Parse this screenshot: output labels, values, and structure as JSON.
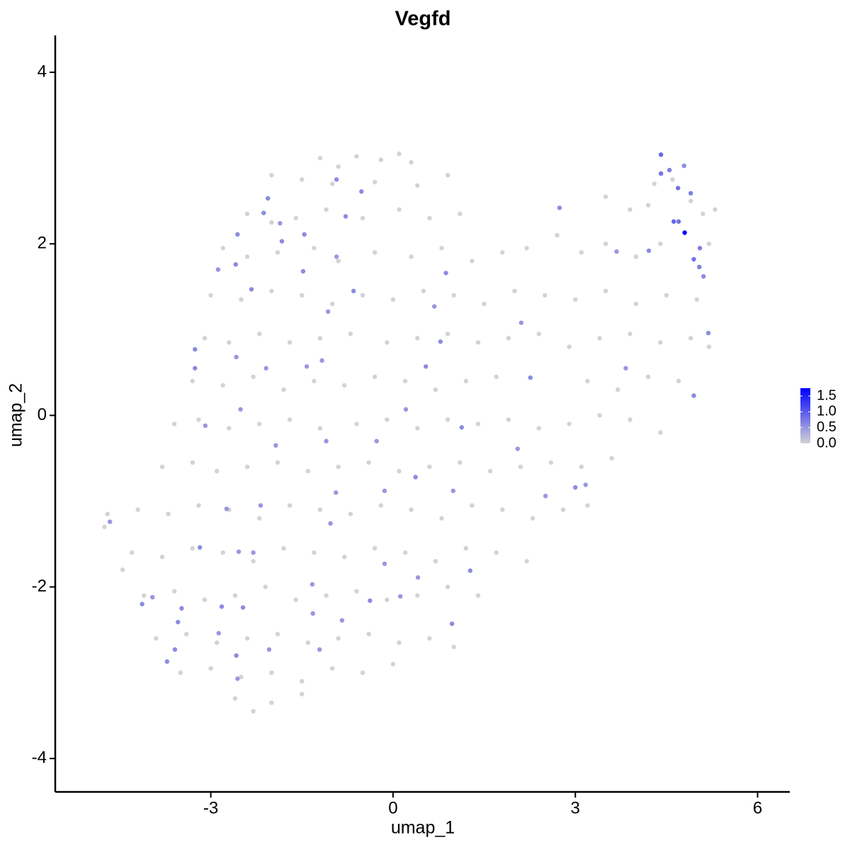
{
  "chart_data": {
    "type": "scatter",
    "title": "Vegfd",
    "x_label": "umap_1",
    "y_label": "umap_2",
    "xlim": [
      -5.56,
      6.53
    ],
    "ylim": [
      -4.39,
      4.43
    ],
    "xticks": [
      -3,
      0,
      3,
      6
    ],
    "yticks": [
      -4,
      -2,
      0,
      2,
      4
    ],
    "colorbar": {
      "colors": [
        "#d3d3d3",
        "#0000ff"
      ],
      "lim": [
        0,
        1.75
      ],
      "ticks": [
        {
          "value": 0,
          "label": "0.0"
        },
        {
          "value": 0.5,
          "label": "0.5"
        },
        {
          "value": 1,
          "label": "1.0"
        },
        {
          "value": 1.5,
          "label": "1.5"
        }
      ]
    },
    "x": [
      -1.2,
      -0.6,
      -0.2,
      0.1,
      0.3,
      -0.9,
      -2.0,
      -1.5,
      -1.0,
      -0.3,
      0.4,
      0.9,
      4.3,
      4.6,
      4.9,
      -2.4,
      -2.0,
      -1.6,
      -1.1,
      -0.5,
      0.1,
      0.6,
      1.1,
      3.5,
      3.9,
      4.2,
      5.1,
      5.3,
      -2.8,
      -2.4,
      -1.9,
      -1.3,
      -0.9,
      -0.3,
      0.3,
      0.8,
      1.3,
      1.8,
      2.2,
      2.7,
      3.1,
      3.5,
      4.0,
      4.4,
      5.2,
      -3.0,
      -2.5,
      -2.0,
      -1.5,
      -1.0,
      -0.5,
      0.0,
      0.5,
      1.0,
      1.5,
      2.0,
      2.5,
      3.0,
      3.5,
      4.0,
      4.5,
      5.0,
      -3.1,
      -2.7,
      -2.2,
      -1.7,
      -1.2,
      -0.7,
      -0.1,
      0.4,
      0.9,
      1.4,
      1.9,
      2.4,
      2.9,
      3.4,
      3.9,
      4.4,
      4.9,
      5.2,
      -3.3,
      -2.8,
      -2.3,
      -1.8,
      -1.3,
      -0.8,
      -0.3,
      0.2,
      0.7,
      1.2,
      1.7,
      3.2,
      3.7,
      4.2,
      4.7,
      -3.6,
      -3.2,
      -2.7,
      -2.2,
      -1.7,
      -1.2,
      -0.6,
      -0.1,
      0.4,
      0.9,
      1.4,
      1.9,
      2.4,
      2.9,
      3.4,
      3.9,
      4.4,
      -3.8,
      -3.3,
      -2.9,
      -2.4,
      -1.9,
      -1.4,
      -0.9,
      -0.4,
      0.1,
      0.6,
      1.1,
      1.6,
      2.1,
      2.6,
      3.1,
      3.6,
      -4.2,
      -3.7,
      -3.2,
      -2.7,
      -2.2,
      -1.7,
      -1.2,
      -0.7,
      -0.2,
      0.3,
      0.8,
      1.3,
      1.8,
      2.3,
      2.8,
      3.2,
      -4.3,
      -3.8,
      -3.3,
      -2.8,
      -2.3,
      -1.8,
      -1.3,
      -0.8,
      -0.3,
      0.2,
      0.7,
      1.2,
      1.7,
      2.2,
      -4.1,
      -3.6,
      -3.1,
      -2.6,
      -2.1,
      -1.6,
      -1.1,
      -0.6,
      -0.1,
      0.4,
      0.9,
      1.4,
      -3.9,
      -3.4,
      -2.9,
      -2.4,
      -1.9,
      -1.4,
      -0.9,
      -0.4,
      0.1,
      0.6,
      1.0,
      -3.5,
      -3.0,
      -2.5,
      -2.0,
      -1.5,
      -1.0,
      -0.5,
      0.0,
      -2.6,
      -2.3,
      -2.0,
      -1.5,
      -4.75,
      -4.7,
      -4.45,
      4.8,
      4.41,
      4.41,
      4.55,
      4.79,
      4.69,
      4.9,
      4.62,
      4.7,
      4.95,
      5.05,
      5.04,
      5.11,
      5.19,
      4.95,
      4.21,
      3.68,
      2.74,
      3.83,
      2.26,
      2.11,
      2.05,
      2.51,
      3.0,
      3.17,
      1.27,
      0.97,
      0.99,
      1.13,
      0.37,
      0.21,
      0.54,
      0.87,
      0.68,
      0.78,
      -0.52,
      -0.93,
      -0.78,
      -0.65,
      -0.93,
      -1.07,
      -1.46,
      -1.48,
      -1.83,
      -1.86,
      -2.06,
      -2.13,
      -2.33,
      -2.59,
      -2.88,
      -2.56,
      -3.26,
      -3.26,
      -2.58,
      -2.09,
      -1.42,
      -1.17,
      -1.93,
      -3.09,
      -2.51,
      -1.1,
      -0.27,
      -0.14,
      -0.94,
      -1.03,
      -2.18,
      -2.74,
      -3.18,
      -2.54,
      -2.3,
      -0.14,
      0.41,
      -0.38,
      -1.33,
      -1.32,
      -0.84,
      -2.82,
      -2.47,
      -3.48,
      -3.54,
      -3.96,
      -4.13,
      -3.59,
      -3.72,
      -2.58,
      -2.87,
      -2.04,
      -1.21,
      -2.56,
      -4.66,
      0.12
    ],
    "values": [
      3.0,
      3.02,
      2.98,
      3.05,
      2.95,
      2.9,
      2.8,
      2.75,
      2.7,
      2.72,
      2.68,
      2.8,
      2.7,
      2.75,
      2.5,
      2.35,
      2.25,
      2.3,
      2.4,
      2.3,
      2.4,
      2.3,
      2.35,
      2.55,
      2.4,
      2.45,
      2.35,
      2.4,
      1.95,
      1.85,
      1.9,
      1.95,
      1.8,
      1.9,
      1.85,
      1.95,
      1.8,
      1.9,
      1.95,
      2.1,
      1.9,
      2.0,
      1.85,
      2.0,
      2.0,
      1.4,
      1.35,
      1.45,
      1.4,
      1.3,
      1.4,
      1.35,
      1.45,
      1.4,
      1.3,
      1.45,
      1.4,
      1.35,
      1.45,
      1.3,
      1.4,
      1.35,
      0.9,
      0.85,
      0.95,
      0.85,
      0.9,
      0.95,
      0.85,
      0.9,
      0.95,
      0.85,
      0.9,
      0.95,
      0.8,
      0.9,
      0.95,
      0.85,
      0.9,
      0.8,
      0.4,
      0.35,
      0.45,
      0.3,
      0.4,
      0.35,
      0.45,
      0.4,
      0.3,
      0.4,
      0.45,
      0.4,
      0.3,
      0.45,
      0.4,
      -0.1,
      -0.05,
      -0.15,
      -0.1,
      -0.05,
      -0.15,
      -0.1,
      -0.05,
      -0.15,
      -0.05,
      -0.1,
      -0.05,
      -0.15,
      -0.1,
      0.0,
      -0.05,
      -0.2,
      -0.6,
      -0.55,
      -0.65,
      -0.6,
      -0.55,
      -0.65,
      -0.6,
      -0.55,
      -0.65,
      -0.6,
      -0.55,
      -0.65,
      -0.6,
      -0.55,
      -0.6,
      -0.5,
      -1.1,
      -1.15,
      -1.05,
      -1.1,
      -1.2,
      -1.05,
      -1.1,
      -1.15,
      -1.05,
      -1.1,
      -1.2,
      -1.05,
      -1.1,
      -1.2,
      -1.1,
      -1.05,
      -1.6,
      -1.65,
      -1.55,
      -1.6,
      -1.7,
      -1.55,
      -1.6,
      -1.65,
      -1.55,
      -1.6,
      -1.7,
      -1.55,
      -1.6,
      -1.7,
      -2.1,
      -2.05,
      -2.15,
      -2.1,
      -2.0,
      -2.15,
      -2.1,
      -2.05,
      -2.15,
      -2.1,
      -2.0,
      -2.1,
      -2.6,
      -2.55,
      -2.65,
      -2.6,
      -2.55,
      -2.65,
      -2.6,
      -2.55,
      -2.65,
      -2.6,
      -2.7,
      -3.0,
      -2.95,
      -3.05,
      -3.0,
      -3.1,
      -2.95,
      -3.0,
      -2.9,
      -3.3,
      -3.45,
      -3.35,
      -3.25,
      -1.3,
      -1.15,
      -1.8,
      2.13,
      3.04,
      2.82,
      2.86,
      2.91,
      2.65,
      2.59,
      2.26,
      2.26,
      1.82,
      1.95,
      1.73,
      1.62,
      0.96,
      0.23,
      1.92,
      1.91,
      2.42,
      0.55,
      0.44,
      1.08,
      -0.39,
      -0.94,
      -0.84,
      -0.81,
      -1.81,
      -2.43,
      -0.88,
      -0.14,
      -0.72,
      0.07,
      0.57,
      1.66,
      1.27,
      0.86,
      2.61,
      2.75,
      2.32,
      1.45,
      1.85,
      1.21,
      2.11,
      1.68,
      2.03,
      2.24,
      2.53,
      2.36,
      1.47,
      1.76,
      1.7,
      2.11,
      0.77,
      0.55,
      0.68,
      0.55,
      0.57,
      0.64,
      -0.35,
      -0.12,
      0.07,
      -0.3,
      -0.3,
      -0.88,
      -0.9,
      -1.26,
      -1.05,
      -1.09,
      -1.54,
      -1.59,
      -1.6,
      -1.73,
      -1.89,
      -2.16,
      -1.97,
      -2.31,
      -2.39,
      -2.23,
      -2.24,
      -2.25,
      -2.41,
      -2.12,
      -2.2,
      -2.73,
      -2.87,
      -2.8,
      -2.54,
      -2.73,
      -2.73,
      -3.07,
      -1.24,
      -2.11
    ],
    "expression": [
      0,
      0,
      0,
      0,
      0,
      0,
      0,
      0,
      0,
      0,
      0,
      0,
      0,
      0,
      0,
      0,
      0,
      0,
      0,
      0,
      0,
      0,
      0,
      0,
      0,
      0,
      0,
      0,
      0,
      0,
      0,
      0,
      0,
      0,
      0,
      0,
      0,
      0,
      0,
      0,
      0,
      0,
      0,
      0,
      0,
      0,
      0,
      0,
      0,
      0,
      0,
      0,
      0,
      0,
      0,
      0,
      0,
      0,
      0,
      0,
      0,
      0,
      0,
      0,
      0,
      0,
      0,
      0,
      0,
      0,
      0,
      0,
      0,
      0,
      0,
      0,
      0,
      0,
      0,
      0,
      0,
      0,
      0,
      0,
      0,
      0,
      0,
      0,
      0,
      0,
      0,
      0,
      0,
      0,
      0,
      0,
      0,
      0,
      0,
      0,
      0,
      0,
      0,
      0,
      0,
      0,
      0,
      0,
      0,
      0,
      0,
      0,
      0,
      0,
      0,
      0,
      0,
      0,
      0,
      0,
      0,
      0,
      0,
      0,
      0,
      0,
      0,
      0,
      0,
      0,
      0,
      0,
      0,
      0,
      0,
      0,
      0,
      0,
      0,
      0,
      0,
      0,
      0,
      0,
      0,
      0,
      0,
      0,
      0,
      0,
      0,
      0,
      0,
      0,
      0,
      0,
      0,
      0,
      0,
      0,
      0,
      0,
      0,
      0,
      0,
      0,
      0,
      0,
      0,
      0,
      0,
      0,
      0,
      0,
      0,
      0,
      0,
      0,
      0,
      0,
      0,
      0,
      0,
      0,
      0,
      0,
      0,
      0,
      0,
      0,
      0,
      0,
      0,
      0,
      0,
      0,
      1.75,
      0.9,
      0.8,
      0.7,
      0.6,
      0.8,
      0.7,
      0.9,
      0.8,
      0.8,
      0.7,
      0.7,
      0.6,
      0.6,
      0.6,
      0.6,
      0.5,
      0.6,
      0.5,
      0.6,
      0.5,
      0.5,
      0.5,
      0.6,
      0.5,
      0.6,
      0.6,
      0.5,
      0.6,
      0.6,
      0.5,
      0.6,
      0.6,
      0.5,
      0.6,
      0.6,
      0.6,
      0.6,
      0.6,
      0.5,
      0.5,
      0.6,
      0.6,
      0.6,
      0.5,
      0.6,
      0.6,
      0.6,
      0.6,
      0.5,
      0.6,
      0.6,
      0.6,
      0.5,
      0.5,
      0.5,
      0.5,
      0.5,
      0.5,
      0.5,
      0.5,
      0.5,
      0.5,
      0.5,
      0.5,
      0.5,
      0.5,
      0.6,
      0.5,
      0.5,
      0.5,
      0.5,
      0.6,
      0.5,
      0.5,
      0.5,
      0.6,
      0.6,
      0.6,
      0.6,
      0.5,
      0.6,
      0.6,
      0.6,
      0.6,
      0.5,
      0.5,
      0.5,
      0.5,
      0.5,
      0.5
    ]
  }
}
